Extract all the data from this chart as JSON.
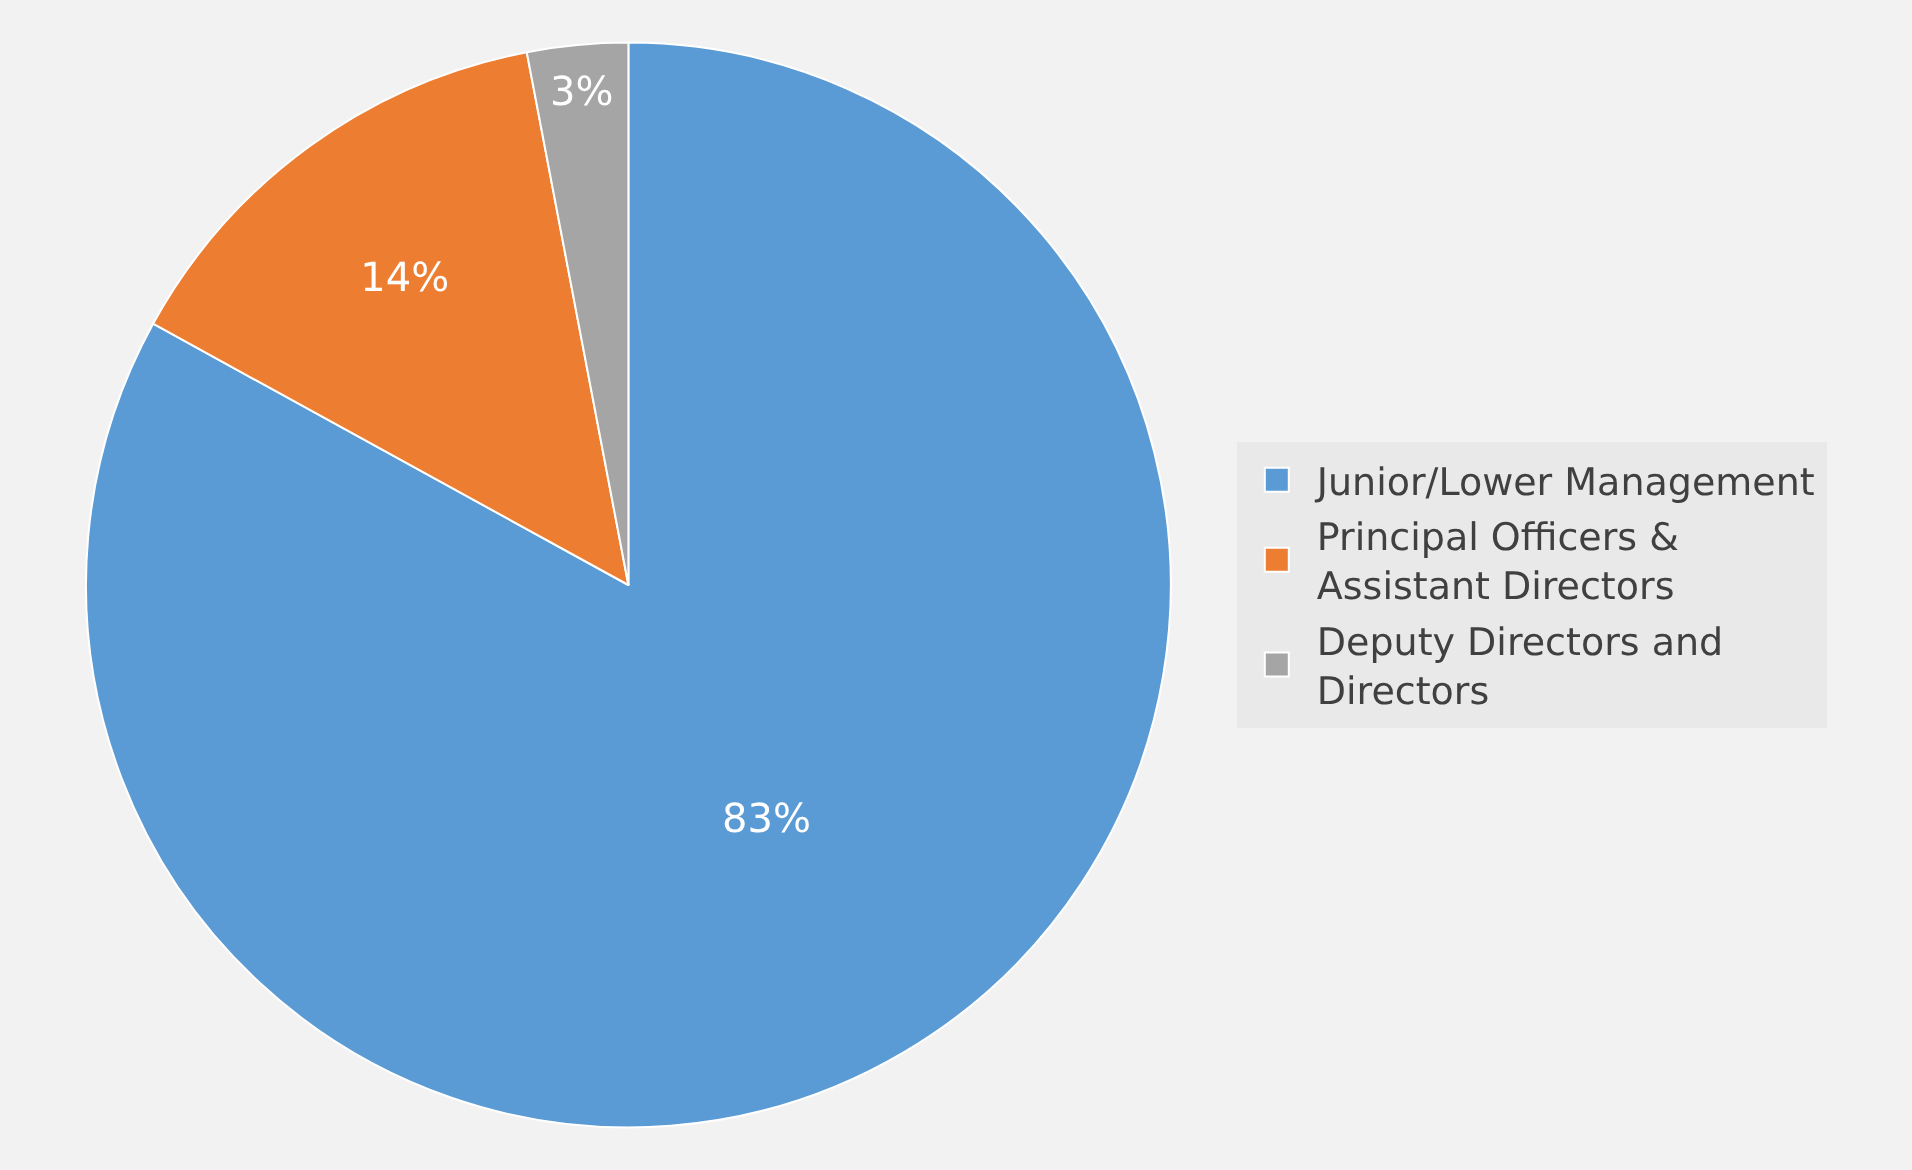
{
  "chart_data": {
    "type": "pie",
    "categories": [
      "Junior/Lower Management",
      "Principal Officers & Assistant Directors",
      "Deputy Directors and Directors"
    ],
    "values": [
      83,
      14,
      3
    ],
    "colors": [
      "#5b9bd5",
      "#ed7d31",
      "#a5a5a5"
    ],
    "value_labels": [
      "83%",
      "14%",
      "3%"
    ],
    "legend": "right"
  }
}
